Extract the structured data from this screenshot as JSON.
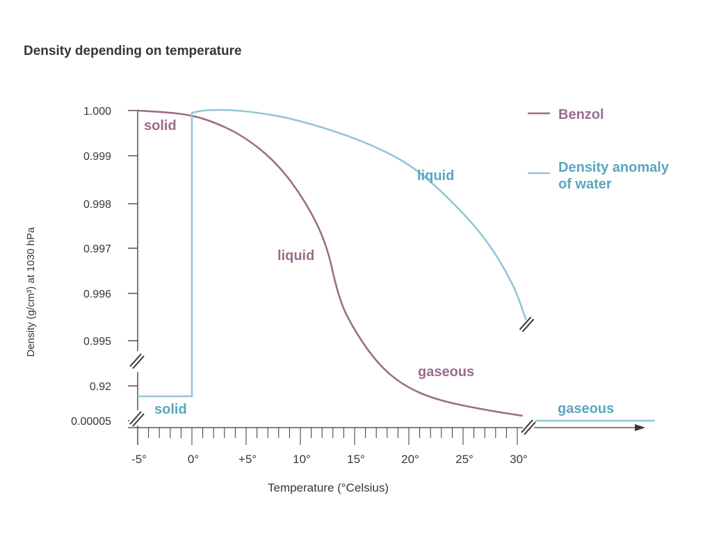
{
  "chart_data": {
    "type": "line",
    "title": "Density depending on temperature",
    "xlabel": "Temperature (°Celsius)",
    "ylabel": "Density (g/cm³) at 1030 hPa",
    "x_tick_values": [
      -5,
      0,
      5,
      10,
      15,
      20,
      25,
      30
    ],
    "x_tick_labels": [
      "-5°",
      "0°",
      "+5°",
      "10°",
      "15°",
      "20°",
      "25°",
      "30°"
    ],
    "x_minor_tick_step": 1,
    "xlim": [
      -5,
      30
    ],
    "y_tick_values": [
      1.0,
      0.999,
      0.998,
      0.997,
      0.996,
      0.995,
      0.92,
      5e-05
    ],
    "y_tick_labels": [
      "1.000",
      "0.999",
      "0.998",
      "0.997",
      "0.996",
      "0.995",
      "0.92",
      "0.00005"
    ],
    "y_axis_breaks": [
      "between 0.995 and 0.92",
      "between 0.92 and 0.00005"
    ],
    "x_axis_break": "after 30°",
    "grid": false,
    "legend_placement": "top-right",
    "series": [
      {
        "name": "Benzol",
        "color": "#9a6c8c",
        "label_color": "#9a6c8c",
        "x": [
          -5,
          -1.0,
          1.5,
          4.7,
          7.9,
          10.5,
          12.4,
          13.4,
          14.4,
          16.9,
          19.5,
          22.7,
          27.2,
          30.5
        ],
        "y": [
          1.0,
          0.99994,
          0.9998,
          0.99945,
          0.99884,
          0.99804,
          0.99711,
          0.99603,
          0.99544,
          0.9605,
          0.92,
          0.534,
          0.276,
          0.129
        ],
        "phase_labels": [
          "solid",
          "liquid",
          "gaseous"
        ]
      },
      {
        "name": "Density anomaly of water",
        "legend_lines": [
          "Density anomaly",
          "of water"
        ],
        "color": "#93c6d6",
        "label_color": "#5ba5bf",
        "x": [
          -5,
          0,
          0,
          0.9,
          2.8,
          5.4,
          9.2,
          14.4,
          18.2,
          20.8,
          24.0,
          27.2,
          29.7,
          30.8
        ],
        "y": [
          0.644,
          0.644,
          0.99995,
          1.0,
          1.00002,
          0.99998,
          0.99983,
          0.99945,
          0.99906,
          0.9987,
          0.99805,
          0.99719,
          0.99618,
          0.99544
        ],
        "gaseous_level_after_break": 5e-05,
        "phase_labels": [
          "solid",
          "liquid",
          "gaseous"
        ]
      }
    ]
  }
}
